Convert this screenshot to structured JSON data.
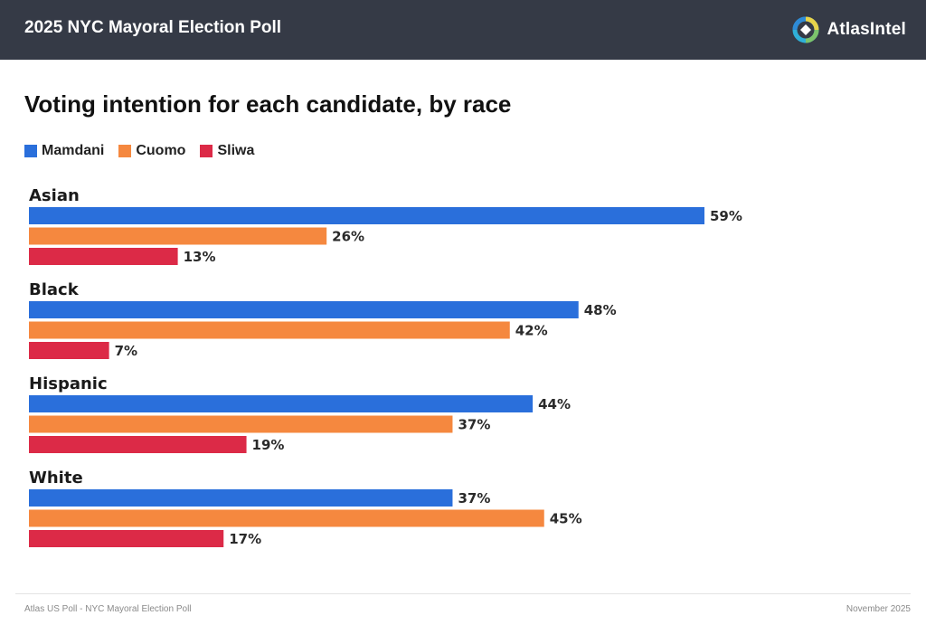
{
  "header": {
    "title": "2025 NYC Mayoral Election Poll",
    "brand": "AtlasIntel"
  },
  "chart_data": {
    "type": "bar",
    "orientation": "horizontal",
    "title": "Voting intention for each candidate, by race",
    "categories": [
      "Asian",
      "Black",
      "Hispanic",
      "White"
    ],
    "series": [
      {
        "name": "Mamdani",
        "color": "#2a6fdb",
        "values": [
          59,
          48,
          44,
          37
        ]
      },
      {
        "name": "Cuomo",
        "color": "#f5883f",
        "values": [
          26,
          42,
          37,
          45
        ]
      },
      {
        "name": "Sliwa",
        "color": "#dc2a47",
        "values": [
          13,
          7,
          19,
          17
        ]
      }
    ],
    "value_suffix": "%",
    "xlim": [
      0,
      59
    ],
    "xlabel": "",
    "ylabel": "",
    "legend_position": "top-left",
    "grid": false
  },
  "footer": {
    "left": "Atlas US Poll - NYC Mayoral Election Poll",
    "right": "November 2025"
  }
}
